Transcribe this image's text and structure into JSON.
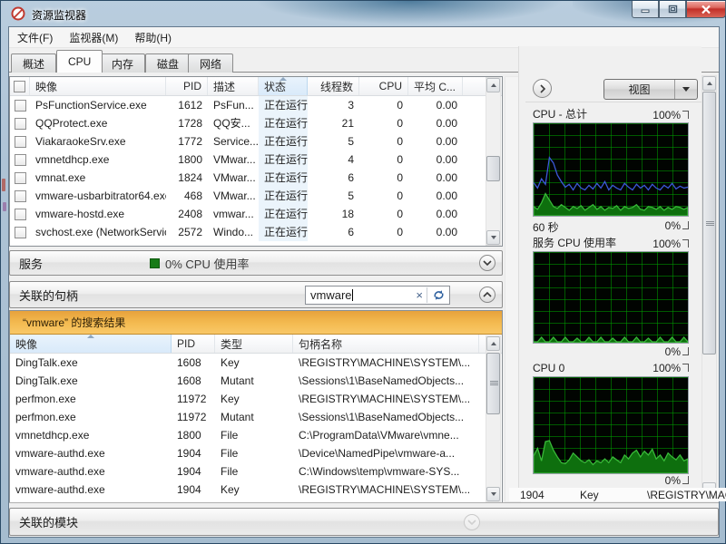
{
  "window": {
    "title": "资源监视器"
  },
  "menu": {
    "items": [
      "文件(F)",
      "监视器(M)",
      "帮助(H)"
    ]
  },
  "tabs": [
    {
      "label": "概述",
      "active": false
    },
    {
      "label": "CPU",
      "active": true
    },
    {
      "label": "内存",
      "active": false
    },
    {
      "label": "磁盘",
      "active": false
    },
    {
      "label": "网络",
      "active": false
    }
  ],
  "cpu_section": {
    "columns": {
      "image": "映像",
      "pid": "PID",
      "description": "描述",
      "status": "状态",
      "threads": "线程数",
      "cpu": "CPU",
      "avg_cpu": "平均 C..."
    },
    "rows": [
      {
        "image": "PsFunctionService.exe",
        "pid": "1612",
        "description": "PsFun...",
        "status": "正在运行",
        "threads": "3",
        "cpu": "0",
        "avg_cpu": "0.00"
      },
      {
        "image": "QQProtect.exe",
        "pid": "1728",
        "description": "QQ安...",
        "status": "正在运行",
        "threads": "21",
        "cpu": "0",
        "avg_cpu": "0.00"
      },
      {
        "image": "ViakaraokeSrv.exe",
        "pid": "1772",
        "description": "Service...",
        "status": "正在运行",
        "threads": "5",
        "cpu": "0",
        "avg_cpu": "0.00"
      },
      {
        "image": "vmnetdhcp.exe",
        "pid": "1800",
        "description": "VMwar...",
        "status": "正在运行",
        "threads": "4",
        "cpu": "0",
        "avg_cpu": "0.00"
      },
      {
        "image": "vmnat.exe",
        "pid": "1824",
        "description": "VMwar...",
        "status": "正在运行",
        "threads": "6",
        "cpu": "0",
        "avg_cpu": "0.00"
      },
      {
        "image": "vmware-usbarbitrator64.exe",
        "pid": "468",
        "description": "VMwar...",
        "status": "正在运行",
        "threads": "5",
        "cpu": "0",
        "avg_cpu": "0.00"
      },
      {
        "image": "vmware-hostd.exe",
        "pid": "2408",
        "description": "vmwar...",
        "status": "正在运行",
        "threads": "18",
        "cpu": "0",
        "avg_cpu": "0.00"
      },
      {
        "image": "svchost.exe (NetworkServic...",
        "pid": "2572",
        "description": "Windo...",
        "status": "正在运行",
        "threads": "6",
        "cpu": "0",
        "avg_cpu": "0.00"
      }
    ]
  },
  "services_section": {
    "title": "服务",
    "status_text": "0% CPU 使用率",
    "status_color": "#1b7e1b"
  },
  "handles_section": {
    "title": "关联的句柄",
    "search": {
      "value": "vmware",
      "clear_glyph": "×"
    },
    "banner": "“vmware” 的搜索结果",
    "columns": {
      "image": "映像",
      "pid": "PID",
      "type": "类型",
      "name": "句柄名称"
    },
    "rows": [
      {
        "image": "DingTalk.exe",
        "pid": "1608",
        "type": "Key",
        "name": "\\REGISTRY\\MACHINE\\SYSTEM\\..."
      },
      {
        "image": "DingTalk.exe",
        "pid": "1608",
        "type": "Mutant",
        "name": "\\Sessions\\1\\BaseNamedObjects..."
      },
      {
        "image": "perfmon.exe",
        "pid": "11972",
        "type": "Key",
        "name": "\\REGISTRY\\MACHINE\\SYSTEM\\..."
      },
      {
        "image": "perfmon.exe",
        "pid": "11972",
        "type": "Mutant",
        "name": "\\Sessions\\1\\BaseNamedObjects..."
      },
      {
        "image": "vmnetdhcp.exe",
        "pid": "1800",
        "type": "File",
        "name": "C:\\ProgramData\\VMware\\vmne..."
      },
      {
        "image": "vmware-authd.exe",
        "pid": "1904",
        "type": "File",
        "name": "\\Device\\NamedPipe\\vmware-a..."
      },
      {
        "image": "vmware-authd.exe",
        "pid": "1904",
        "type": "File",
        "name": "C:\\Windows\\temp\\vmware-SYS..."
      },
      {
        "image": "vmware-authd.exe",
        "pid": "1904",
        "type": "Key",
        "name": "\\REGISTRY\\MACHINE\\SYSTEM\\..."
      }
    ]
  },
  "modules_section": {
    "title": "关联的模块"
  },
  "right_panel": {
    "views_label": "视图",
    "graphs": [
      {
        "title": "CPU - 总计",
        "ymax_label": "100%",
        "ymin_label": "0%",
        "xlabel": "60 秒",
        "series": [
          {
            "name": "cpu-total-usage",
            "color": "#3c58d8",
            "values": [
              36,
              30,
              40,
              34,
              63,
              57,
              44,
              37,
              31,
              34,
              28,
              35,
              30,
              28,
              33,
              29,
              35,
              30,
              37,
              28,
              33,
              30,
              28,
              35,
              31,
              28,
              34,
              30,
              33,
              28,
              34,
              30,
              28,
              33,
              30,
              35,
              29,
              32,
              30,
              31
            ]
          },
          {
            "name": "cpu-kernel",
            "color": "#39b939",
            "fill": "#0e6f0e",
            "values": [
              10,
              7,
              14,
              24,
              17,
              10,
              8,
              12,
              9,
              6,
              10,
              8,
              11,
              6,
              9,
              12,
              7,
              10,
              6,
              9,
              8,
              11,
              6,
              10,
              8,
              9,
              12,
              7,
              6,
              10,
              9,
              7,
              10,
              6,
              9,
              7,
              10,
              9,
              7,
              9
            ]
          }
        ]
      },
      {
        "title": "服务 CPU 使用率",
        "ymax_label": "100%",
        "ymin_label": "0%",
        "xlabel": "",
        "series": [
          {
            "name": "services-cpu-usage",
            "color": "#39b939",
            "fill": "#0e6f0e",
            "values": [
              1,
              1,
              6,
              1,
              1,
              6,
              1,
              1,
              6,
              1,
              1,
              5,
              1,
              1,
              6,
              1,
              1,
              6,
              1,
              1,
              5,
              1,
              1,
              6,
              1,
              1,
              6,
              1,
              1,
              5,
              1,
              1,
              6,
              1,
              1,
              6,
              1,
              1,
              6,
              1
            ]
          }
        ]
      },
      {
        "title": "CPU 0",
        "ymax_label": "100%",
        "ymin_label": "0%",
        "xlabel": "",
        "series": [
          {
            "name": "cpu0-usage",
            "color": "#39b939",
            "fill": "#0e6f0e",
            "values": [
              18,
              26,
              13,
              33,
              34,
              24,
              17,
              11,
              10,
              14,
              21,
              17,
              13,
              11,
              14,
              9,
              13,
              11,
              15,
              11,
              17,
              14,
              11,
              19,
              15,
              21,
              24,
              17,
              23,
              19,
              25,
              15,
              19,
              13,
              21,
              17,
              14,
              19,
              13,
              15
            ]
          }
        ]
      }
    ]
  },
  "artifact_row": {
    "pid": "1904",
    "type": "Key",
    "name": "\\REGISTRY\\MAC"
  }
}
